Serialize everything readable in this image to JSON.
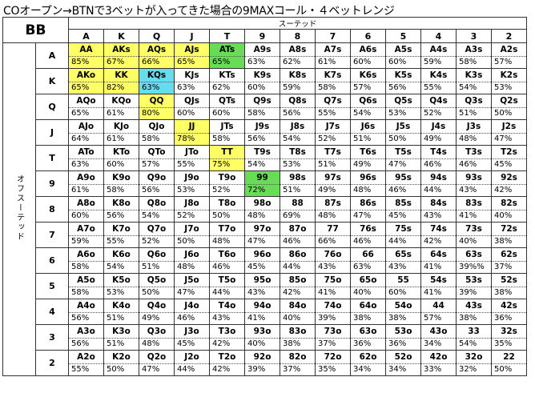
{
  "title": "COオープン→BTNで3ベットが入ってきた場合の9MAXコール・４ベットレンジ",
  "corner_label": "BB",
  "suited_label": "スーテッド",
  "offsuit_label": "オフスーテッド",
  "columns": [
    "A",
    "K",
    "Q",
    "J",
    "T",
    "9",
    "8",
    "7",
    "6",
    "5",
    "4",
    "3",
    "2"
  ],
  "rows": [
    {
      "rank": "A",
      "cells": [
        {
          "hand": "AA",
          "pct": "85%",
          "hl": "yellow"
        },
        {
          "hand": "AKs",
          "pct": "67%",
          "hl": "yellow"
        },
        {
          "hand": "AQs",
          "pct": "66%",
          "hl": "yellow"
        },
        {
          "hand": "AJs",
          "pct": "65%",
          "hl": "yellow"
        },
        {
          "hand": "ATs",
          "pct": "65%",
          "hl": "green"
        },
        {
          "hand": "A9s",
          "pct": "63%"
        },
        {
          "hand": "A8s",
          "pct": "62%"
        },
        {
          "hand": "A7s",
          "pct": "61%"
        },
        {
          "hand": "A6s",
          "pct": "60%"
        },
        {
          "hand": "A5s",
          "pct": "60%"
        },
        {
          "hand": "A4s",
          "pct": "59%"
        },
        {
          "hand": "A3s",
          "pct": "58%"
        },
        {
          "hand": "A2s",
          "pct": "57%"
        }
      ]
    },
    {
      "rank": "K",
      "cells": [
        {
          "hand": "AKo",
          "pct": "65%",
          "hl": "yellow"
        },
        {
          "hand": "KK",
          "pct": "82%",
          "hl": "yellow"
        },
        {
          "hand": "KQs",
          "pct": "63%",
          "hl": "cyan"
        },
        {
          "hand": "KJs",
          "pct": "63%"
        },
        {
          "hand": "KTs",
          "pct": "62%"
        },
        {
          "hand": "K9s",
          "pct": "60%"
        },
        {
          "hand": "K8s",
          "pct": "59%"
        },
        {
          "hand": "K7s",
          "pct": "58%"
        },
        {
          "hand": "K6s",
          "pct": "57%"
        },
        {
          "hand": "K5s",
          "pct": "56%"
        },
        {
          "hand": "K4s",
          "pct": "55%"
        },
        {
          "hand": "K3s",
          "pct": "54%"
        },
        {
          "hand": "K2s",
          "pct": "53%"
        }
      ]
    },
    {
      "rank": "Q",
      "cells": [
        {
          "hand": "AQo",
          "pct": "65%"
        },
        {
          "hand": "KQo",
          "pct": "61%"
        },
        {
          "hand": "QQ",
          "pct": "80%",
          "hl": "yellow"
        },
        {
          "hand": "QJs",
          "pct": "60%"
        },
        {
          "hand": "QTs",
          "pct": "60%"
        },
        {
          "hand": "Q9s",
          "pct": "58%"
        },
        {
          "hand": "Q8s",
          "pct": "56%"
        },
        {
          "hand": "Q7s",
          "pct": "55%"
        },
        {
          "hand": "Q6s",
          "pct": "54%"
        },
        {
          "hand": "Q5s",
          "pct": "53%"
        },
        {
          "hand": "Q4s",
          "pct": "52%"
        },
        {
          "hand": "Q3s",
          "pct": "51%"
        },
        {
          "hand": "Q2s",
          "pct": "50%"
        }
      ]
    },
    {
      "rank": "J",
      "cells": [
        {
          "hand": "AJo",
          "pct": "64%"
        },
        {
          "hand": "KJo",
          "pct": "61%"
        },
        {
          "hand": "QJo",
          "pct": "58%"
        },
        {
          "hand": "JJ",
          "pct": "78%",
          "hl": "yellow"
        },
        {
          "hand": "JTs",
          "pct": "58%"
        },
        {
          "hand": "J9s",
          "pct": "56%"
        },
        {
          "hand": "J8s",
          "pct": "54%"
        },
        {
          "hand": "J7s",
          "pct": "52%"
        },
        {
          "hand": "J6s",
          "pct": "51%"
        },
        {
          "hand": "J5s",
          "pct": "50%"
        },
        {
          "hand": "J4s",
          "pct": "49%"
        },
        {
          "hand": "J3s",
          "pct": "48%"
        },
        {
          "hand": "J2s",
          "pct": "47%"
        }
      ]
    },
    {
      "rank": "T",
      "cells": [
        {
          "hand": "ATo",
          "pct": "63%"
        },
        {
          "hand": "KTo",
          "pct": "60%"
        },
        {
          "hand": "QTo",
          "pct": "57%"
        },
        {
          "hand": "JTo",
          "pct": "55%"
        },
        {
          "hand": "TT",
          "pct": "75%",
          "hl": "yellow"
        },
        {
          "hand": "T9s",
          "pct": "54%"
        },
        {
          "hand": "T8s",
          "pct": "53%"
        },
        {
          "hand": "T7s",
          "pct": "51%"
        },
        {
          "hand": "T6s",
          "pct": "49%"
        },
        {
          "hand": "T5s",
          "pct": "47%"
        },
        {
          "hand": "T4s",
          "pct": "46%"
        },
        {
          "hand": "T3s",
          "pct": "46%"
        },
        {
          "hand": "T2s",
          "pct": "45%"
        }
      ]
    },
    {
      "rank": "9",
      "cells": [
        {
          "hand": "A9o",
          "pct": "61%"
        },
        {
          "hand": "K9o",
          "pct": "58%"
        },
        {
          "hand": "Q9o",
          "pct": "56%"
        },
        {
          "hand": "J9o",
          "pct": "53%"
        },
        {
          "hand": "T9o",
          "pct": "52%"
        },
        {
          "hand": "99",
          "pct": "72%",
          "hl": "green"
        },
        {
          "hand": "98s",
          "pct": "51%"
        },
        {
          "hand": "97s",
          "pct": "49%"
        },
        {
          "hand": "96s",
          "pct": "48%"
        },
        {
          "hand": "95s",
          "pct": "46%"
        },
        {
          "hand": "94s",
          "pct": "44%"
        },
        {
          "hand": "93s",
          "pct": "43%"
        },
        {
          "hand": "92s",
          "pct": "42%"
        }
      ]
    },
    {
      "rank": "8",
      "cells": [
        {
          "hand": "A8o",
          "pct": "60%"
        },
        {
          "hand": "K8o",
          "pct": "56%"
        },
        {
          "hand": "Q8o",
          "pct": "54%"
        },
        {
          "hand": "J8o",
          "pct": "52%"
        },
        {
          "hand": "T8o",
          "pct": "50%"
        },
        {
          "hand": "98o",
          "pct": "48%"
        },
        {
          "hand": "88",
          "pct": "69%"
        },
        {
          "hand": "87s",
          "pct": "48%"
        },
        {
          "hand": "86s",
          "pct": "47%"
        },
        {
          "hand": "85s",
          "pct": "45%"
        },
        {
          "hand": "84s",
          "pct": "43%"
        },
        {
          "hand": "83s",
          "pct": "41%"
        },
        {
          "hand": "82s",
          "pct": "40%"
        }
      ]
    },
    {
      "rank": "7",
      "cells": [
        {
          "hand": "A7o",
          "pct": "59%"
        },
        {
          "hand": "K7o",
          "pct": "55%"
        },
        {
          "hand": "Q7o",
          "pct": "52%"
        },
        {
          "hand": "J7o",
          "pct": "50%"
        },
        {
          "hand": "T7o",
          "pct": "48%"
        },
        {
          "hand": "97o",
          "pct": "47%"
        },
        {
          "hand": "87o",
          "pct": "46%"
        },
        {
          "hand": "77",
          "pct": "66%"
        },
        {
          "hand": "76s",
          "pct": "46%"
        },
        {
          "hand": "75s",
          "pct": "44%"
        },
        {
          "hand": "74s",
          "pct": "42%"
        },
        {
          "hand": "73s",
          "pct": "40%"
        },
        {
          "hand": "72s",
          "pct": "38%"
        }
      ]
    },
    {
      "rank": "6",
      "cells": [
        {
          "hand": "A6o",
          "pct": "58%"
        },
        {
          "hand": "K6o",
          "pct": "54%"
        },
        {
          "hand": "Q6o",
          "pct": "51%"
        },
        {
          "hand": "J6o",
          "pct": "48%"
        },
        {
          "hand": "T6o",
          "pct": "46%"
        },
        {
          "hand": "96o",
          "pct": "45%"
        },
        {
          "hand": "86o",
          "pct": "44%"
        },
        {
          "hand": "76o",
          "pct": "43%"
        },
        {
          "hand": "66",
          "pct": "63%"
        },
        {
          "hand": "65s",
          "pct": "43%"
        },
        {
          "hand": "64s",
          "pct": "41%"
        },
        {
          "hand": "63s",
          "pct": "39%%"
        },
        {
          "hand": "62s",
          "pct": "37%"
        }
      ]
    },
    {
      "rank": "5",
      "cells": [
        {
          "hand": "A5o",
          "pct": "58%"
        },
        {
          "hand": "K5o",
          "pct": "53%"
        },
        {
          "hand": "Q5o",
          "pct": "50%"
        },
        {
          "hand": "J5o",
          "pct": "47%"
        },
        {
          "hand": "T5o",
          "pct": "44%"
        },
        {
          "hand": "95o",
          "pct": "43%"
        },
        {
          "hand": "85o",
          "pct": "42%"
        },
        {
          "hand": "75o",
          "pct": "41%"
        },
        {
          "hand": "65o",
          "pct": "40%"
        },
        {
          "hand": "55",
          "pct": "60%"
        },
        {
          "hand": "54s",
          "pct": "41%"
        },
        {
          "hand": "53s",
          "pct": "39%"
        },
        {
          "hand": "52s",
          "pct": "38%"
        }
      ]
    },
    {
      "rank": "4",
      "cells": [
        {
          "hand": "A4o",
          "pct": "56%"
        },
        {
          "hand": "K4o",
          "pct": "51%"
        },
        {
          "hand": "Q4o",
          "pct": "49%"
        },
        {
          "hand": "J4o",
          "pct": "46%"
        },
        {
          "hand": "T4o",
          "pct": "43%"
        },
        {
          "hand": "94o",
          "pct": "41%"
        },
        {
          "hand": "84o",
          "pct": "40%"
        },
        {
          "hand": "74o",
          "pct": "39%"
        },
        {
          "hand": "64o",
          "pct": "38%"
        },
        {
          "hand": "54o",
          "pct": "38%"
        },
        {
          "hand": "44",
          "pct": "57%"
        },
        {
          "hand": "43s",
          "pct": "38%"
        },
        {
          "hand": "42s",
          "pct": "36%"
        }
      ]
    },
    {
      "rank": "3",
      "cells": [
        {
          "hand": "A3o",
          "pct": "56%"
        },
        {
          "hand": "K3o",
          "pct": "51%"
        },
        {
          "hand": "Q3o",
          "pct": "48%"
        },
        {
          "hand": "J3o",
          "pct": "45%"
        },
        {
          "hand": "T3o",
          "pct": "42%"
        },
        {
          "hand": "93o",
          "pct": "40%"
        },
        {
          "hand": "83o",
          "pct": "38%"
        },
        {
          "hand": "73o",
          "pct": "37%"
        },
        {
          "hand": "63o",
          "pct": "36%"
        },
        {
          "hand": "53o",
          "pct": "36%"
        },
        {
          "hand": "43o",
          "pct": "34%"
        },
        {
          "hand": "33",
          "pct": "54%"
        },
        {
          "hand": "32s",
          "pct": "35%"
        }
      ]
    },
    {
      "rank": "2",
      "cells": [
        {
          "hand": "A2o",
          "pct": "55%"
        },
        {
          "hand": "K2o",
          "pct": "50%"
        },
        {
          "hand": "Q2o",
          "pct": "47%"
        },
        {
          "hand": "J2o",
          "pct": "44%"
        },
        {
          "hand": "T2o",
          "pct": "42%"
        },
        {
          "hand": "92o",
          "pct": "39%"
        },
        {
          "hand": "82o",
          "pct": "37%"
        },
        {
          "hand": "72o",
          "pct": "35%"
        },
        {
          "hand": "62o",
          "pct": "34%"
        },
        {
          "hand": "52o",
          "pct": "34%"
        },
        {
          "hand": "42o",
          "pct": "33%"
        },
        {
          "hand": "32o",
          "pct": "32%"
        },
        {
          "hand": "22",
          "pct": "50%"
        }
      ]
    }
  ],
  "colors": {
    "yellow": "#ffff66",
    "green": "#66dd55",
    "cyan": "#66ddee"
  }
}
